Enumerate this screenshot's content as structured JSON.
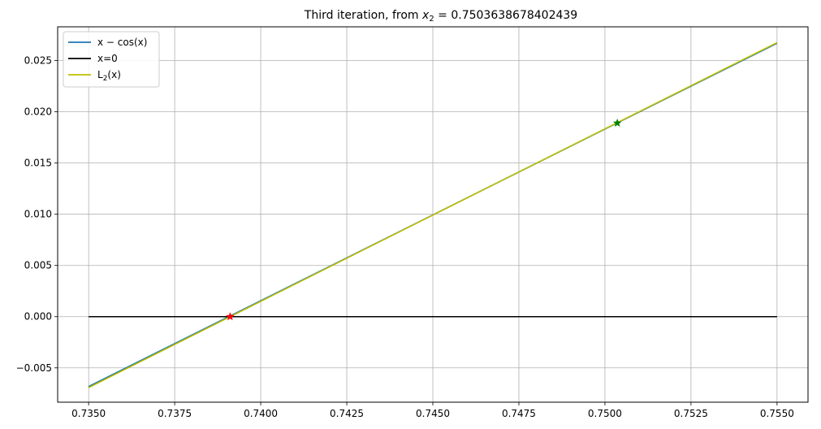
{
  "chart_data": {
    "type": "line",
    "title_prefix": "Third iteration, from ",
    "title_var": "x",
    "title_sub": "2",
    "title_suffix": " = 0.7503638678402439",
    "xlabel": "",
    "ylabel": "",
    "xlim": [
      0.7341,
      0.7559
    ],
    "ylim": [
      -0.00835,
      0.0283
    ],
    "xticks": [
      0.735,
      0.7375,
      0.74,
      0.7425,
      0.745,
      0.7475,
      0.75,
      0.7525,
      0.755
    ],
    "xtick_labels": [
      "0.7350",
      "0.7375",
      "0.7400",
      "0.7425",
      "0.7450",
      "0.7475",
      "0.7500",
      "0.7525",
      "0.7550"
    ],
    "yticks": [
      -0.005,
      0.0,
      0.005,
      0.01,
      0.015,
      0.02,
      0.025
    ],
    "ytick_labels": [
      "−0.005",
      "0.000",
      "0.005",
      "0.010",
      "0.015",
      "0.020",
      "0.025"
    ],
    "grid": true,
    "legend_position": "top-left",
    "series": [
      {
        "name": "x − cos(x)",
        "legend_main": "x − cos(x)",
        "legend_sub": "",
        "legend_tail": "",
        "color": "#1f77b4",
        "x": [
          0.735,
          0.755
        ],
        "y": [
          -0.00682,
          0.02669
        ]
      },
      {
        "name": "x=0",
        "legend_main": "x=0",
        "legend_sub": "",
        "legend_tail": "",
        "color": "#000000",
        "x": [
          0.735,
          0.755
        ],
        "y": [
          0.0,
          0.0
        ]
      },
      {
        "name": "L2(x)",
        "legend_main": "L",
        "legend_sub": "2",
        "legend_tail": "(x)",
        "color": "#bfbf00",
        "x": [
          0.735,
          0.755
        ],
        "y": [
          -0.00693,
          0.02676
        ]
      }
    ],
    "markers": [
      {
        "label": "previous point",
        "x": 0.75036,
        "y": 0.0189,
        "color": "#008000",
        "shape": "star"
      },
      {
        "label": "new root estimate",
        "x": 0.73911,
        "y": 0.0,
        "color": "#ff0000",
        "shape": "star"
      }
    ]
  }
}
